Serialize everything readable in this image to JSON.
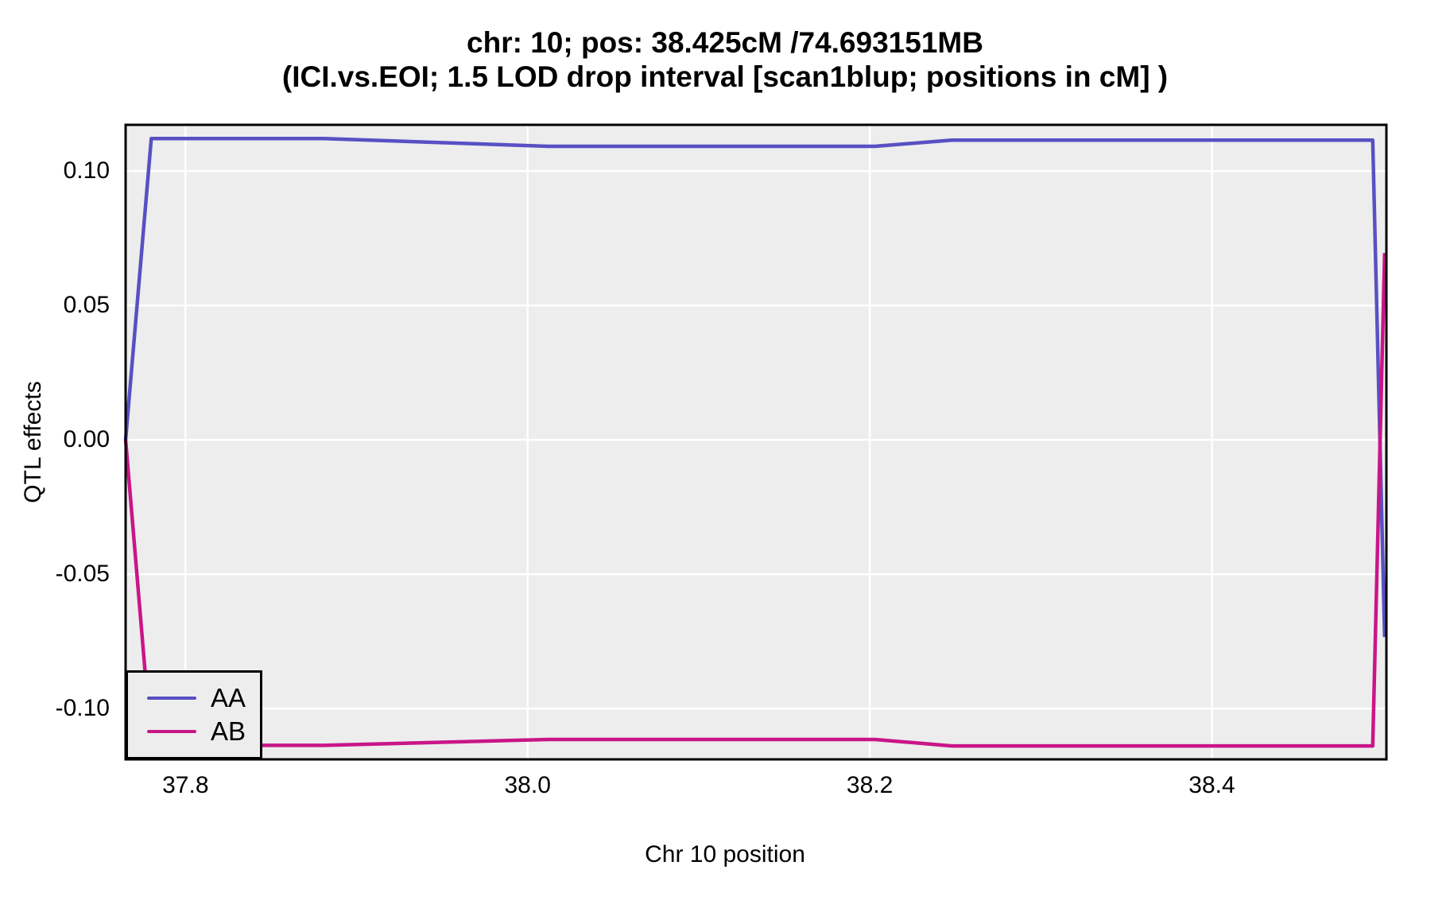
{
  "title": {
    "line1": "chr: 10; pos: 38.425cM /74.693151MB",
    "line2": "(ICI.vs.EOI; 1.5 LOD drop interval [scan1blup; positions in cM] )"
  },
  "colors": {
    "panel_background": "#EDEDED",
    "gridline": "#FFFFFF",
    "panel_border": "#000000",
    "series_aa": "#5850C3",
    "series_ab": "#CA1588"
  },
  "chart_data": {
    "type": "line",
    "title": "chr: 10; pos: 38.425cM /74.693151MB",
    "subtitle": "(ICI.vs.EOI; 1.5 LOD drop interval [scan1blup; positions in cM] )",
    "xlabel": "Chr 10 position",
    "ylabel": "QTL effects",
    "xlim": [
      37.765,
      38.502
    ],
    "ylim": [
      -0.1189,
      0.1172
    ],
    "x_ticks": [
      37.8,
      38.0,
      38.2,
      38.4
    ],
    "x_tick_labels": [
      "37.8",
      "38.0",
      "38.2",
      "38.4"
    ],
    "y_ticks": [
      0.1,
      0.05,
      0.0,
      -0.05,
      -0.1
    ],
    "y_tick_labels": [
      "0.10",
      "0.05",
      "0.00",
      "-0.05",
      "-0.10"
    ],
    "grid": true,
    "legend_position": "bottom-left",
    "series": [
      {
        "name": "AA",
        "color": "#5850C3",
        "points": [
          [
            37.765,
            0.0
          ],
          [
            37.78,
            0.1121
          ],
          [
            37.881,
            0.1121
          ],
          [
            38.012,
            0.1092
          ],
          [
            38.203,
            0.1092
          ],
          [
            38.248,
            0.1115
          ],
          [
            38.494,
            0.1115
          ],
          [
            38.501,
            -0.0734
          ]
        ]
      },
      {
        "name": "AB",
        "color": "#CA1588",
        "points": [
          [
            37.765,
            0.0
          ],
          [
            37.78,
            -0.1137
          ],
          [
            37.881,
            -0.1137
          ],
          [
            38.012,
            -0.1115
          ],
          [
            38.203,
            -0.1115
          ],
          [
            38.248,
            -0.1139
          ],
          [
            38.494,
            -0.1139
          ],
          [
            38.501,
            0.0695
          ]
        ]
      }
    ]
  }
}
